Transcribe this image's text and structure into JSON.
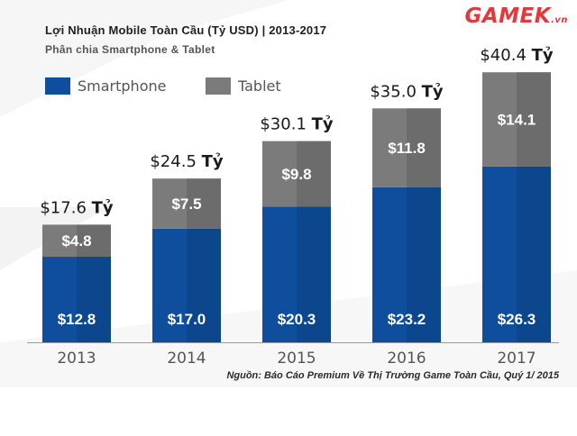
{
  "header": {
    "title": "Lợi Nhuận Mobile Toàn Cầu (Tỷ USD) | 2013-2017",
    "subtitle": "Phân chia Smartphone & Tablet"
  },
  "logo": {
    "text": "GAMEK",
    "suffix": ".vn"
  },
  "footer": {
    "source": "Nguồn: Báo Cáo Premium Về Thị Trường Game Toàn Cầu, Quý 1/ 2015"
  },
  "chart_data": {
    "type": "bar",
    "stacked": true,
    "categories": [
      "2013",
      "2014",
      "2015",
      "2016",
      "2017"
    ],
    "series": [
      {
        "name": "Smartphone",
        "values": [
          12.8,
          17.0,
          20.3,
          23.2,
          26.3
        ],
        "labels": [
          "$12.8",
          "$17.0",
          "$20.3",
          "$23.2",
          "$26.3"
        ],
        "color": "#0e4e9c"
      },
      {
        "name": "Tablet",
        "values": [
          4.8,
          7.5,
          9.8,
          11.8,
          14.1
        ],
        "labels": [
          "$4.8",
          "$7.5",
          "$9.8",
          "$11.8",
          "$14.1"
        ],
        "color": "#7b7b7b"
      }
    ],
    "totals": [
      17.6,
      24.5,
      30.1,
      35.0,
      40.4
    ],
    "total_labels": [
      "$17.6",
      "$24.5",
      "$30.1",
      "$35.0",
      "$40.4"
    ],
    "total_unit": "Tỷ",
    "ylim": [
      0,
      45
    ],
    "grid": false,
    "legend_position": "top-left",
    "colors": {
      "smartphone_dark": "#0b3f80",
      "tablet_dark": "#606060",
      "axis": "#9a9a9a",
      "label": "#1a1a1a"
    }
  }
}
